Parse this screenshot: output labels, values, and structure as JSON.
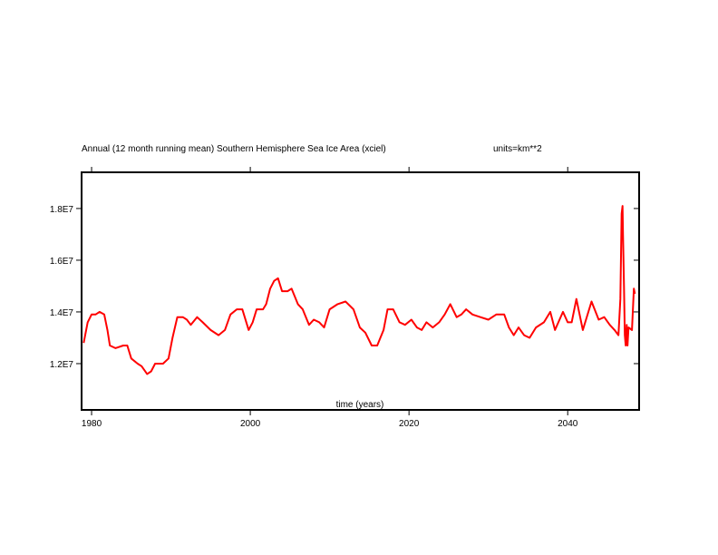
{
  "chart_data": {
    "type": "line",
    "title": "Annual (12 month running mean) Southern Hemisphere Sea Ice Area (xciel)",
    "units_label": "units=km**2",
    "xlabel": "time (years)",
    "ylabel": "",
    "xlim": [
      1978.74,
      2049.0
    ],
    "ylim": [
      10210000.0,
      19400000.0
    ],
    "grid": false,
    "x_ticks": [
      1980,
      2000,
      2020,
      2040
    ],
    "x_tick_labels": [
      "1980",
      "2000",
      "2020",
      "2040"
    ],
    "y_ticks": [
      12000000.0,
      14000000.0,
      16000000.0,
      18000000.0
    ],
    "y_tick_labels": [
      "1.2E7",
      "1.4E7",
      "1.6E7",
      "1.8E7"
    ],
    "series": [
      {
        "name": "sea ice area",
        "color": "#ff0000",
        "x": [
          1979.0,
          1979.5,
          1980.0,
          1980.5,
          1981.0,
          1981.6,
          1982.0,
          1982.3,
          1983.0,
          1984.0,
          1984.5,
          1985.0,
          1985.8,
          1986.3,
          1987.0,
          1987.5,
          1988.0,
          1989.0,
          1989.7,
          1990.2,
          1990.8,
          1991.5,
          1992.0,
          1992.5,
          1993.3,
          1994.0,
          1995.0,
          1996.0,
          1996.8,
          1997.5,
          1998.3,
          1999.0,
          1999.8,
          2000.3,
          2000.8,
          2001.6,
          2002.0,
          2002.5,
          2003.0,
          2003.5,
          2004.0,
          2004.7,
          2005.2,
          2006.0,
          2006.6,
          2007.4,
          2008.0,
          2008.7,
          2009.3,
          2010.0,
          2011.0,
          2012.0,
          2013.0,
          2013.8,
          2014.5,
          2015.3,
          2016.0,
          2016.8,
          2017.3,
          2018.0,
          2018.8,
          2019.5,
          2020.3,
          2021.0,
          2021.6,
          2022.2,
          2023.0,
          2023.8,
          2024.5,
          2025.2,
          2026.0,
          2026.6,
          2027.2,
          2028.0,
          2029.0,
          2030.0,
          2031.0,
          2032.0,
          2032.6,
          2033.2,
          2033.8,
          2034.5,
          2035.2,
          2036.0,
          2037.0,
          2037.8,
          2038.4,
          2039.4,
          2040.0,
          2040.5,
          2041.1,
          2041.9,
          2043.0,
          2043.9,
          2044.6,
          2045.3,
          2045.9,
          2046.4,
          2046.63,
          2046.8,
          2046.91,
          2046.97,
          2047.09,
          2047.2,
          2047.31,
          2047.43,
          2047.54,
          2047.66,
          2048.1,
          2048.34,
          2048.46
        ],
        "y": [
          1.28,
          1.36,
          1.39,
          1.39,
          1.4,
          1.39,
          1.33,
          1.27,
          1.26,
          1.27,
          1.27,
          1.22,
          1.2,
          1.19,
          1.16,
          1.17,
          1.2,
          1.2,
          1.22,
          1.3,
          1.38,
          1.38,
          1.37,
          1.35,
          1.38,
          1.36,
          1.33,
          1.31,
          1.33,
          1.39,
          1.41,
          1.41,
          1.33,
          1.36,
          1.41,
          1.41,
          1.43,
          1.49,
          1.52,
          1.53,
          1.48,
          1.48,
          1.49,
          1.43,
          1.41,
          1.35,
          1.37,
          1.36,
          1.34,
          1.41,
          1.43,
          1.44,
          1.41,
          1.34,
          1.32,
          1.27,
          1.27,
          1.33,
          1.41,
          1.41,
          1.36,
          1.35,
          1.37,
          1.34,
          1.33,
          1.36,
          1.34,
          1.36,
          1.39,
          1.43,
          1.38,
          1.39,
          1.41,
          1.39,
          1.38,
          1.37,
          1.39,
          1.39,
          1.34,
          1.31,
          1.34,
          1.31,
          1.3,
          1.34,
          1.36,
          1.4,
          1.33,
          1.4,
          1.36,
          1.36,
          1.45,
          1.33,
          1.44,
          1.37,
          1.38,
          1.35,
          1.33,
          1.31,
          1.45,
          1.78,
          1.81,
          1.7,
          1.5,
          1.31,
          1.27,
          1.35,
          1.27,
          1.34,
          1.33,
          1.49,
          1.47
        ],
        "y_scale": 10000000.0
      }
    ]
  }
}
